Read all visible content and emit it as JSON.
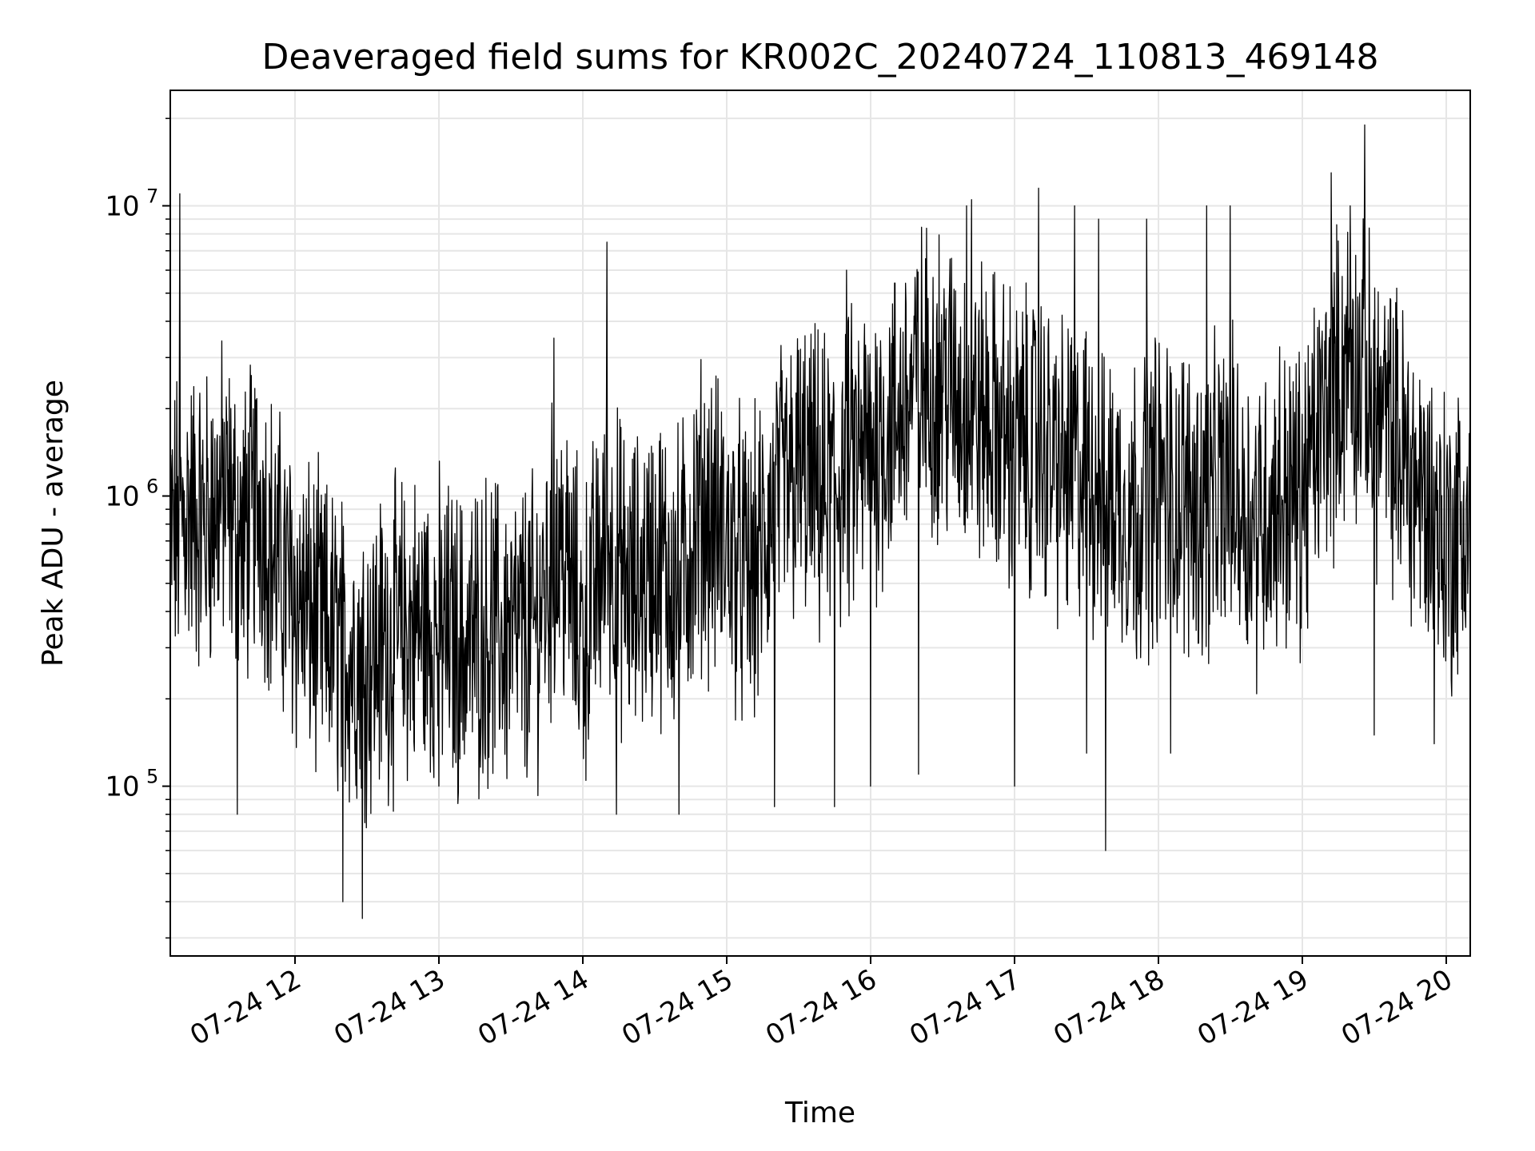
{
  "chart_data": {
    "type": "line",
    "title": "Deaveraged field sums for KR002C_20240724_110813_469148",
    "xlabel": "Time",
    "ylabel": "Peak ADU - average",
    "yscale": "log",
    "xlim": [
      "2024-07-24 11:08",
      "2024-07-24 20:10"
    ],
    "ylim": [
      26000,
      25000000
    ],
    "grid": true,
    "grid_minor_y": true,
    "line_color": "#000000",
    "grid_color": "#e6e6e6",
    "xticks": [
      {
        "time": "2024-07-24 12:00",
        "label": "07-24 12"
      },
      {
        "time": "2024-07-24 13:00",
        "label": "07-24 13"
      },
      {
        "time": "2024-07-24 14:00",
        "label": "07-24 14"
      },
      {
        "time": "2024-07-24 15:00",
        "label": "07-24 15"
      },
      {
        "time": "2024-07-24 16:00",
        "label": "07-24 16"
      },
      {
        "time": "2024-07-24 17:00",
        "label": "07-24 17"
      },
      {
        "time": "2024-07-24 18:00",
        "label": "07-24 18"
      },
      {
        "time": "2024-07-24 19:00",
        "label": "07-24 19"
      },
      {
        "time": "2024-07-24 20:00",
        "label": "07-24 20"
      }
    ],
    "yticks": [
      {
        "value": 100000,
        "base": "10",
        "exp": "5"
      },
      {
        "value": 1000000,
        "base": "10",
        "exp": "6"
      },
      {
        "value": 10000000,
        "base": "10",
        "exp": "7"
      }
    ],
    "series": [
      {
        "x": [
          "2024-07-24 11:08",
          "2024-07-24 11:15",
          "2024-07-24 11:22",
          "2024-07-24 11:30",
          "2024-07-24 11:38",
          "2024-07-24 11:45",
          "2024-07-24 11:52",
          "2024-07-24 12:00",
          "2024-07-24 12:10",
          "2024-07-24 12:20",
          "2024-07-24 12:30",
          "2024-07-24 12:40",
          "2024-07-24 12:50",
          "2024-07-24 13:00",
          "2024-07-24 13:10",
          "2024-07-24 13:20",
          "2024-07-24 13:30",
          "2024-07-24 13:40",
          "2024-07-24 13:50",
          "2024-07-24 14:00",
          "2024-07-24 14:10",
          "2024-07-24 14:20",
          "2024-07-24 14:30",
          "2024-07-24 14:40",
          "2024-07-24 14:50",
          "2024-07-24 15:00",
          "2024-07-24 15:10",
          "2024-07-24 15:20",
          "2024-07-24 15:30",
          "2024-07-24 15:40",
          "2024-07-24 15:50",
          "2024-07-24 16:00",
          "2024-07-24 16:10",
          "2024-07-24 16:20",
          "2024-07-24 16:30",
          "2024-07-24 16:40",
          "2024-07-24 16:50",
          "2024-07-24 17:00",
          "2024-07-24 17:10",
          "2024-07-24 17:20",
          "2024-07-24 17:30",
          "2024-07-24 17:40",
          "2024-07-24 17:50",
          "2024-07-24 18:00",
          "2024-07-24 18:10",
          "2024-07-24 18:20",
          "2024-07-24 18:30",
          "2024-07-24 18:40",
          "2024-07-24 18:50",
          "2024-07-24 19:00",
          "2024-07-24 19:10",
          "2024-07-24 19:20",
          "2024-07-24 19:30",
          "2024-07-24 19:40",
          "2024-07-24 19:50",
          "2024-07-24 20:00",
          "2024-07-24 20:10"
        ],
        "y": [
          700000,
          900000,
          800000,
          1000000,
          700000,
          1000000,
          600000,
          450000,
          350000,
          300000,
          280000,
          320000,
          350000,
          350000,
          300000,
          350000,
          320000,
          350000,
          700000,
          320000,
          700000,
          450000,
          600000,
          500000,
          900000,
          700000,
          500000,
          900000,
          1200000,
          1000000,
          1200000,
          1500000,
          1800000,
          2500000,
          2500000,
          2000000,
          1800000,
          1500000,
          1500000,
          1200000,
          1200000,
          1000000,
          900000,
          1100000,
          1000000,
          900000,
          1100000,
          800000,
          1000000,
          1000000,
          2000000,
          3000000,
          2000000,
          1500000,
          1000000,
          700000,
          800000
        ],
        "spike_max_x": [
          "2024-07-24 11:12",
          "2024-07-24 13:48",
          "2024-07-24 14:10",
          "2024-07-24 15:50",
          "2024-07-24 16:20",
          "2024-07-24 16:40",
          "2024-07-24 16:42",
          "2024-07-24 17:10",
          "2024-07-24 17:25",
          "2024-07-24 17:35",
          "2024-07-24 17:55",
          "2024-07-24 18:20",
          "2024-07-24 18:30",
          "2024-07-24 19:12",
          "2024-07-24 19:20",
          "2024-07-24 19:26"
        ],
        "spike_max_y": [
          11000000,
          3500000,
          7500000,
          6000000,
          10500000,
          10000000,
          10500000,
          11500000,
          10000000,
          9000000,
          9000000,
          10000000,
          10000000,
          13000000,
          10000000,
          19000000
        ],
        "spike_min_x": [
          "2024-07-24 11:36",
          "2024-07-24 12:20",
          "2024-07-24 12:28",
          "2024-07-24 13:00",
          "2024-07-24 14:14",
          "2024-07-24 14:40",
          "2024-07-24 15:20",
          "2024-07-24 15:45",
          "2024-07-24 16:00",
          "2024-07-24 16:20",
          "2024-07-24 17:00",
          "2024-07-24 17:30",
          "2024-07-24 17:38",
          "2024-07-24 18:05",
          "2024-07-24 19:30",
          "2024-07-24 19:55"
        ],
        "spike_min_y": [
          80000,
          40000,
          35000,
          100000,
          80000,
          80000,
          85000,
          85000,
          100000,
          110000,
          100000,
          130000,
          60000,
          130000,
          150000,
          140000
        ]
      }
    ]
  }
}
